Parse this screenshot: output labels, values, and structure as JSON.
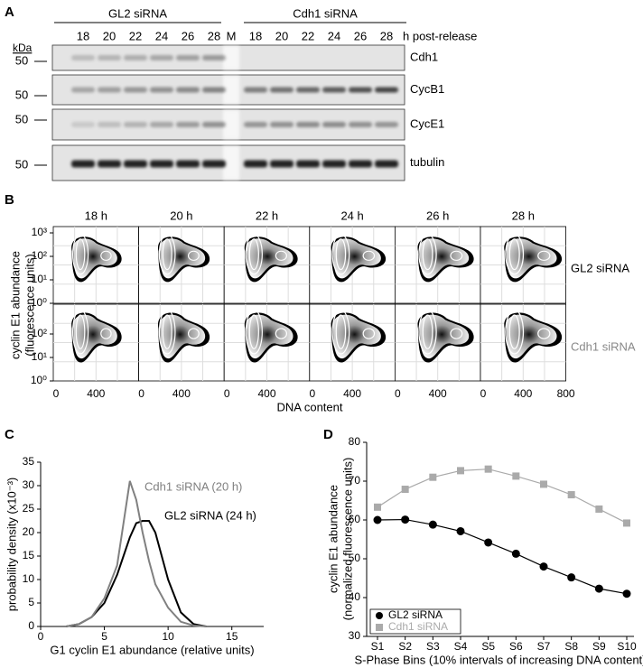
{
  "panel_labels": [
    "A",
    "B",
    "C",
    "D"
  ],
  "panel_a": {
    "groups": [
      "GL2 siRNA",
      "Cdh1 siRNA"
    ],
    "lanes": [
      "18",
      "20",
      "22",
      "24",
      "26",
      "28"
    ],
    "marker_lane": "M",
    "time_unit": "h post-release",
    "kda": "kDa",
    "marker": "50",
    "bands": [
      "Cdh1",
      "CycB1",
      "CycE1",
      "tubulin"
    ]
  },
  "panel_b": {
    "times": [
      "18 h",
      "20 h",
      "22 h",
      "24 h",
      "26 h",
      "28 h"
    ],
    "rows": [
      "GL2 siRNA",
      "Cdh1 siRNA"
    ],
    "ylabel": [
      "cyclin E1 abundance",
      "(fluorescence units)"
    ],
    "xlabel": "DNA content",
    "y_tick_labels": [
      "10⁰",
      "10¹",
      "10²",
      "10³"
    ],
    "x_tick_labels": [
      "0",
      "400",
      "800"
    ]
  },
  "chart_data": [
    {
      "type": "line",
      "xlabel": "G1 cyclin E1 abundance (relative units)",
      "ylabel": "probability density (x10⁻³)",
      "x": [
        2,
        3,
        4,
        5,
        6,
        6.5,
        7,
        7.5,
        8,
        8.5,
        9,
        10,
        11,
        12,
        13
      ],
      "series": [
        {
          "name": "GL2 siRNA (24 h)",
          "color": "#000000",
          "values": [
            0,
            0.5,
            2,
            5,
            11,
            15,
            19,
            22,
            22.5,
            22.5,
            20,
            10,
            3,
            0.5,
            0
          ]
        },
        {
          "name": "Cdh1 siRNA (20 h)",
          "color": "#808080",
          "values": [
            0,
            0.5,
            2,
            6,
            13,
            22,
            31,
            27,
            20,
            14,
            9,
            4,
            1,
            0.2,
            0
          ]
        }
      ],
      "xlim": [
        0,
        17.5
      ],
      "ylim": [
        0,
        35
      ],
      "xticks": [
        0,
        5,
        10,
        15
      ],
      "yticks": [
        0,
        5,
        10,
        15,
        20,
        25,
        30,
        35
      ]
    },
    {
      "type": "line",
      "xlabel": "S-Phase Bins (10% intervals of increasing DNA content)",
      "ylabel": [
        "cyclin E1 abundance",
        "(normalized fluorescence units)"
      ],
      "categories": [
        "S1",
        "S2",
        "S3",
        "S4",
        "S5",
        "S6",
        "S7",
        "S8",
        "S9",
        "S10"
      ],
      "series": [
        {
          "name": "GL2 siRNA",
          "color": "#000000",
          "marker": "circle",
          "values": [
            60,
            60.1,
            58.8,
            57.1,
            54.2,
            51.3,
            48,
            45.2,
            42.3,
            41
          ]
        },
        {
          "name": "Cdh1 siRNA",
          "color": "#aaaaaa",
          "marker": "square",
          "values": [
            63.3,
            67.9,
            71,
            72.7,
            73.1,
            71.3,
            69.2,
            66.5,
            62.8,
            59.2
          ]
        }
      ],
      "ylim": [
        30,
        80
      ],
      "yticks": [
        30,
        40,
        50,
        60,
        70,
        80
      ],
      "legend": "lower left"
    }
  ]
}
